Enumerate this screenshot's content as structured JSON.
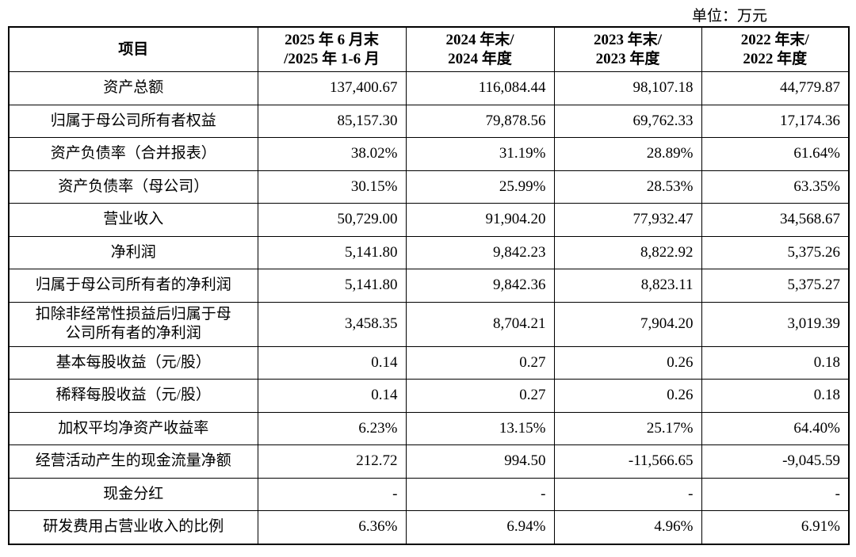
{
  "unit": "单位：万元",
  "table": {
    "columns": [
      [
        "项目"
      ],
      [
        "2025 年 6 月末",
        "/2025 年 1-6 月"
      ],
      [
        "2024 年末/",
        "2024 年度"
      ],
      [
        "2023 年末/",
        "2023 年度"
      ],
      [
        "2022 年末/",
        "2022 年度"
      ]
    ],
    "rows": [
      [
        [
          "资产总额"
        ],
        "137,400.67",
        "116,084.44",
        "98,107.18",
        "44,779.87"
      ],
      [
        [
          "归属于母公司所有者权益"
        ],
        "85,157.30",
        "79,878.56",
        "69,762.33",
        "17,174.36"
      ],
      [
        [
          "资产负债率（合并报表）"
        ],
        "38.02%",
        "31.19%",
        "28.89%",
        "61.64%"
      ],
      [
        [
          "资产负债率（母公司）"
        ],
        "30.15%",
        "25.99%",
        "28.53%",
        "63.35%"
      ],
      [
        [
          "营业收入"
        ],
        "50,729.00",
        "91,904.20",
        "77,932.47",
        "34,568.67"
      ],
      [
        [
          "净利润"
        ],
        "5,141.80",
        "9,842.23",
        "8,822.92",
        "5,375.26"
      ],
      [
        [
          "归属于母公司所有者的净利润"
        ],
        "5,141.80",
        "9,842.36",
        "8,823.11",
        "5,375.27"
      ],
      [
        [
          "扣除非经常性损益后归属于母",
          "公司所有者的净利润"
        ],
        "3,458.35",
        "8,704.21",
        "7,904.20",
        "3,019.39"
      ],
      [
        [
          "基本每股收益（元/股）"
        ],
        "0.14",
        "0.27",
        "0.26",
        "0.18"
      ],
      [
        [
          "稀释每股收益（元/股）"
        ],
        "0.14",
        "0.27",
        "0.26",
        "0.18"
      ],
      [
        [
          "加权平均净资产收益率"
        ],
        "6.23%",
        "13.15%",
        "25.17%",
        "64.40%"
      ],
      [
        [
          "经营活动产生的现金流量净额"
        ],
        "212.72",
        "994.50",
        "-11,566.65",
        "-9,045.59"
      ],
      [
        [
          "现金分红"
        ],
        "-",
        "-",
        "-",
        "-"
      ],
      [
        [
          "研发费用占营业收入的比例"
        ],
        "6.36%",
        "6.94%",
        "4.96%",
        "6.91%"
      ]
    ]
  }
}
